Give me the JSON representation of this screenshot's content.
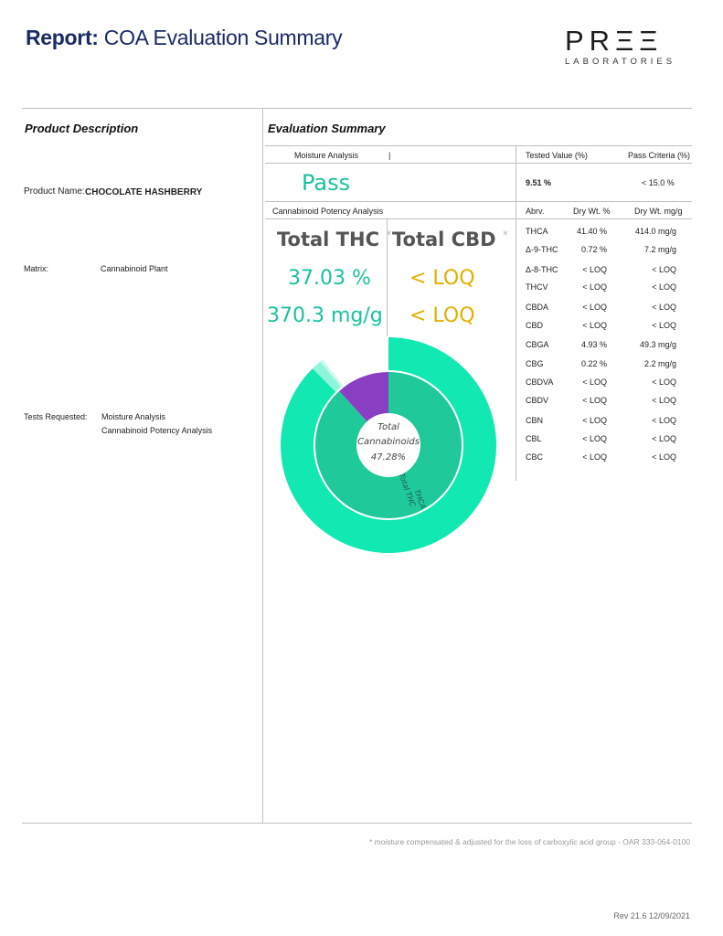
{
  "header": {
    "title_bold": "Report:",
    "title_rest": "COA Evaluation Summary",
    "logo_main": "PRΞΞ",
    "logo_sub": "LABORATORIES"
  },
  "left": {
    "section_title": "Product Description",
    "product_name_label": "Product Name:",
    "product_name_value": "CHOCOLATE  HASHBERRY",
    "matrix_label": "Matrix:",
    "matrix_value": "Cannabinoid Plant",
    "tests_label": "Tests Requested:",
    "tests": [
      "Moisture Analysis",
      "Cannabinoid Potency Analysis"
    ]
  },
  "summary": {
    "section_title": "Evaluation Summary",
    "moisture_label": "Moisture Analysis",
    "moisture_sep": "|",
    "tested_value_header": "Tested Value (%)",
    "pass_criteria_header": "Pass Criteria (%)",
    "moisture_result": "Pass",
    "moisture_value": "9.51 %",
    "moisture_criteria": "< 15.0 %",
    "potency_label": "Cannabinoid Potency Analysis",
    "col_abrv": "Abrv.",
    "col_dry_pct": "Dry Wt. %",
    "col_dry_mg": "Dry Wt. mg/g",
    "total_thc_label": "Total THC",
    "total_cbd_label": "Total CBD",
    "asterisk": "*",
    "total_thc_pct": "37.03 %",
    "total_cbd_pct": "< LOQ",
    "total_thc_mg": "370.3 mg/g",
    "total_cbd_mg": "< LOQ",
    "rows": [
      {
        "abrv": "THCA",
        "pct": "41.40 %",
        "mg": "414.0 mg/g"
      },
      {
        "abrv": "Δ-9-THC",
        "pct": "0.72 %",
        "mg": "7.2 mg/g"
      },
      {
        "abrv": "Δ-8-THC",
        "pct": "< LOQ",
        "mg": "< LOQ"
      },
      {
        "abrv": "THCV",
        "pct": "< LOQ",
        "mg": "< LOQ"
      },
      {
        "abrv": "CBDA",
        "pct": "< LOQ",
        "mg": "< LOQ"
      },
      {
        "abrv": "CBD",
        "pct": "< LOQ",
        "mg": "< LOQ"
      },
      {
        "abrv": "CBGA",
        "pct": "4.93 %",
        "mg": "49.3 mg/g"
      },
      {
        "abrv": "CBG",
        "pct": "0.22 %",
        "mg": "2.2 mg/g"
      },
      {
        "abrv": "CBDVA",
        "pct": "< LOQ",
        "mg": "< LOQ"
      },
      {
        "abrv": "CBDV",
        "pct": "< LOQ",
        "mg": "< LOQ"
      },
      {
        "abrv": "CBN",
        "pct": "< LOQ",
        "mg": "< LOQ"
      },
      {
        "abrv": "CBL",
        "pct": "< LOQ",
        "mg": "< LOQ"
      },
      {
        "abrv": "CBC",
        "pct": "< LOQ",
        "mg": "< LOQ"
      }
    ]
  },
  "chart_data": {
    "type": "pie",
    "title": "",
    "center_label_1": "Total",
    "center_label_2": "Cannabinoids",
    "center_value": "47.28%",
    "inner_ring": [
      {
        "name": "Total THC",
        "value": 37.03,
        "color": "#1fc99a"
      },
      {
        "name": "CBGA",
        "value": 4.93,
        "color": "#8a3fc2"
      }
    ],
    "outer_ring": [
      {
        "name": "THCA",
        "value": 41.4,
        "color": "#12e8b2"
      },
      {
        "name": "Δ-9-THC",
        "value": 0.72,
        "color": "#8ef5dc"
      },
      {
        "name": "CBG",
        "value": 0.22,
        "color": "#c8f9ec"
      }
    ],
    "outer_label": "THCA",
    "inner_label": "Total THC"
  },
  "footer": {
    "footnote": "* moisture compensated & adjusted for the loss of carboxylic acid group - OAR 333-064-0100",
    "revision": "Rev 21.6  12/09/2021"
  }
}
